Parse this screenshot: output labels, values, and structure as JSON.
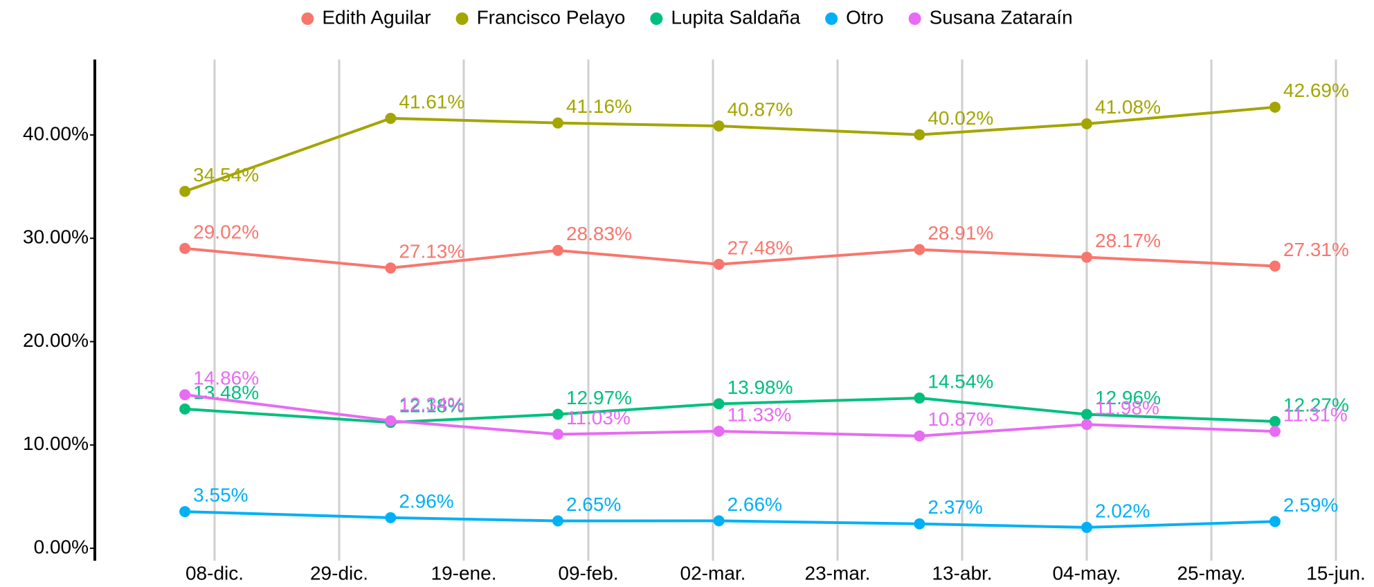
{
  "chart_data": {
    "type": "line",
    "x": [
      "03-dic.",
      "07-ene.",
      "04-feb.",
      "03-mar.",
      "06-abr.",
      "04-may.",
      "05-jun."
    ],
    "series": [
      {
        "name": "Edith Aguilar",
        "color": "#F8766D",
        "values": [
          29.02,
          27.13,
          28.83,
          27.48,
          28.91,
          28.17,
          27.31
        ],
        "value_labels": [
          "29.02%",
          "27.13%",
          "28.83%",
          "27.48%",
          "28.91%",
          "28.17%",
          "27.31%"
        ]
      },
      {
        "name": "Francisco Pelayo",
        "color": "#A3A500",
        "values": [
          34.54,
          41.61,
          41.16,
          40.87,
          40.02,
          41.08,
          42.69
        ],
        "value_labels": [
          "34.54%",
          "41.61%",
          "41.16%",
          "40.87%",
          "40.02%",
          "41.08%",
          "42.69%"
        ]
      },
      {
        "name": "Lupita Saldaña",
        "color": "#00BF7D",
        "values": [
          13.48,
          12.18,
          12.97,
          13.98,
          14.54,
          12.96,
          12.27
        ],
        "value_labels": [
          "13.48%",
          "12.18%",
          "12.97%",
          "13.98%",
          "14.54%",
          "12.96%",
          "12.27%"
        ]
      },
      {
        "name": "Otro",
        "color": "#00B0F6",
        "values": [
          3.55,
          2.96,
          2.65,
          2.66,
          2.37,
          2.02,
          2.59
        ],
        "value_labels": [
          "3.55%",
          "2.96%",
          "2.65%",
          "2.66%",
          "2.37%",
          "2.02%",
          "2.59%"
        ]
      },
      {
        "name": "Susana Zataraín",
        "color": "#E76BF3",
        "values": [
          14.86,
          12.34,
          11.03,
          11.33,
          10.87,
          11.98,
          11.31
        ],
        "value_labels": [
          "14.86%",
          "12.34%",
          "11.03%",
          "11.33%",
          "10.87%",
          "11.98%",
          "11.31%"
        ]
      }
    ],
    "xticks": [
      "08-dic.",
      "29-dic.",
      "19-ene.",
      "09-feb.",
      "02-mar.",
      "23-mar.",
      "13-abr.",
      "04-may.",
      "25-may.",
      "15-jun."
    ],
    "ylim": [
      -1.2,
      47.3
    ],
    "yticks": [
      {
        "value": 0,
        "label": "0.00%"
      },
      {
        "value": 10,
        "label": "10.00%"
      },
      {
        "value": 20,
        "label": "20.00%"
      },
      {
        "value": 30,
        "label": "30.00%"
      },
      {
        "value": 40,
        "label": "40.00%"
      }
    ],
    "legend": "top",
    "grid": "x"
  }
}
